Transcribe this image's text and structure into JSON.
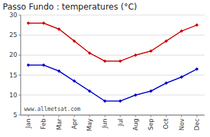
{
  "chart_data": {
    "type": "line",
    "title": "Passo Fundo : temperatures (°C)",
    "categories": [
      "Jan",
      "Feb",
      "Mar",
      "Apr",
      "May",
      "Jun",
      "Jul",
      "Aug",
      "Sep",
      "Oct",
      "Nov",
      "Dec"
    ],
    "series": [
      {
        "color": "#cc0000",
        "marker": "diamond",
        "values": [
          28,
          28,
          26.5,
          23.5,
          20.5,
          18.5,
          18.5,
          20,
          21,
          23.5,
          26,
          27.5
        ]
      },
      {
        "color": "#0000cc",
        "marker": "diamond",
        "values": [
          17.5,
          17.5,
          16,
          13.5,
          11,
          8.5,
          8.5,
          10,
          11,
          13,
          14.5,
          16.5
        ]
      }
    ],
    "ylim": [
      5,
      30
    ],
    "yticks": [
      5,
      10,
      15,
      20,
      25,
      30
    ],
    "grid": true,
    "annotation": "www.allmetsat.com"
  }
}
